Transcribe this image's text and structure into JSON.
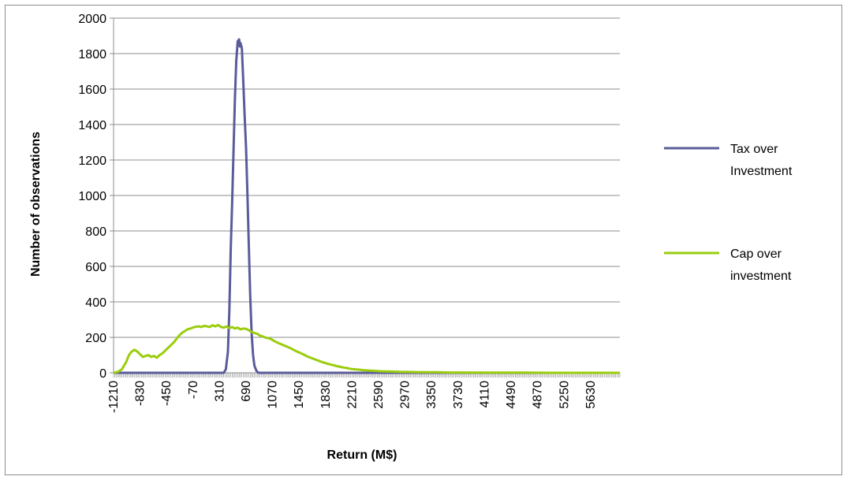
{
  "chart_data": {
    "type": "line",
    "title": "",
    "xlabel": "Return (M$)",
    "ylabel": "Number of observations",
    "ylim": [
      0,
      2000
    ],
    "yticks": [
      0,
      200,
      400,
      600,
      800,
      1000,
      1200,
      1400,
      1600,
      1800,
      2000
    ],
    "xlim": [
      -1210,
      6050
    ],
    "xticks": [
      -1210,
      -830,
      -450,
      -70,
      310,
      690,
      1070,
      1450,
      1830,
      2210,
      2590,
      2970,
      3350,
      3730,
      4110,
      4490,
      4870,
      5250,
      5630
    ],
    "grid": "horizontal",
    "legend_position": "right",
    "colors": {
      "tax": "#5b5b9a",
      "cap": "#9acd0d",
      "grid": "#8c8c8c",
      "axis": "#8c8c8c"
    },
    "series": [
      {
        "name": "Tax over Investment",
        "color": "#5b5b9a",
        "points": [
          [
            -1210,
            0
          ],
          [
            370,
            0
          ],
          [
            400,
            20
          ],
          [
            430,
            120
          ],
          [
            450,
            350
          ],
          [
            470,
            700
          ],
          [
            490,
            950
          ],
          [
            510,
            1250
          ],
          [
            530,
            1550
          ],
          [
            550,
            1760
          ],
          [
            570,
            1870
          ],
          [
            590,
            1880
          ],
          [
            600,
            1840
          ],
          [
            610,
            1860
          ],
          [
            630,
            1830
          ],
          [
            650,
            1640
          ],
          [
            670,
            1450
          ],
          [
            690,
            1270
          ],
          [
            710,
            1000
          ],
          [
            730,
            700
          ],
          [
            750,
            430
          ],
          [
            770,
            220
          ],
          [
            790,
            100
          ],
          [
            810,
            40
          ],
          [
            840,
            10
          ],
          [
            870,
            0
          ],
          [
            6050,
            0
          ]
        ]
      },
      {
        "name": "Cap over investment",
        "color": "#9acd0d",
        "points": [
          [
            -1210,
            0
          ],
          [
            -1150,
            5
          ],
          [
            -1090,
            20
          ],
          [
            -1030,
            60
          ],
          [
            -990,
            100
          ],
          [
            -950,
            120
          ],
          [
            -910,
            130
          ],
          [
            -870,
            120
          ],
          [
            -830,
            105
          ],
          [
            -790,
            90
          ],
          [
            -750,
            95
          ],
          [
            -710,
            100
          ],
          [
            -670,
            90
          ],
          [
            -630,
            95
          ],
          [
            -590,
            85
          ],
          [
            -550,
            100
          ],
          [
            -510,
            110
          ],
          [
            -470,
            125
          ],
          [
            -430,
            140
          ],
          [
            -390,
            155
          ],
          [
            -350,
            170
          ],
          [
            -310,
            190
          ],
          [
            -270,
            210
          ],
          [
            -230,
            225
          ],
          [
            -190,
            235
          ],
          [
            -150,
            245
          ],
          [
            -110,
            250
          ],
          [
            -70,
            255
          ],
          [
            -30,
            260
          ],
          [
            10,
            262
          ],
          [
            50,
            258
          ],
          [
            90,
            265
          ],
          [
            130,
            262
          ],
          [
            170,
            258
          ],
          [
            210,
            268
          ],
          [
            250,
            262
          ],
          [
            290,
            270
          ],
          [
            330,
            258
          ],
          [
            370,
            255
          ],
          [
            410,
            262
          ],
          [
            450,
            252
          ],
          [
            490,
            258
          ],
          [
            530,
            250
          ],
          [
            570,
            255
          ],
          [
            610,
            245
          ],
          [
            650,
            250
          ],
          [
            690,
            248
          ],
          [
            730,
            240
          ],
          [
            770,
            230
          ],
          [
            810,
            225
          ],
          [
            850,
            220
          ],
          [
            890,
            210
          ],
          [
            930,
            205
          ],
          [
            970,
            198
          ],
          [
            1010,
            195
          ],
          [
            1050,
            190
          ],
          [
            1090,
            180
          ],
          [
            1130,
            172
          ],
          [
            1170,
            165
          ],
          [
            1210,
            158
          ],
          [
            1250,
            152
          ],
          [
            1290,
            145
          ],
          [
            1330,
            138
          ],
          [
            1370,
            130
          ],
          [
            1410,
            122
          ],
          [
            1450,
            115
          ],
          [
            1490,
            108
          ],
          [
            1530,
            100
          ],
          [
            1570,
            92
          ],
          [
            1610,
            86
          ],
          [
            1650,
            80
          ],
          [
            1690,
            74
          ],
          [
            1730,
            68
          ],
          [
            1770,
            62
          ],
          [
            1810,
            57
          ],
          [
            1850,
            52
          ],
          [
            1890,
            48
          ],
          [
            1930,
            44
          ],
          [
            1970,
            40
          ],
          [
            2010,
            36
          ],
          [
            2050,
            33
          ],
          [
            2090,
            30
          ],
          [
            2130,
            27
          ],
          [
            2170,
            24
          ],
          [
            2210,
            21
          ],
          [
            2290,
            18
          ],
          [
            2370,
            15
          ],
          [
            2450,
            13
          ],
          [
            2530,
            11
          ],
          [
            2610,
            9
          ],
          [
            2690,
            8
          ],
          [
            2770,
            7
          ],
          [
            2850,
            6
          ],
          [
            2930,
            5
          ],
          [
            3010,
            5
          ],
          [
            3150,
            4
          ],
          [
            3300,
            3
          ],
          [
            3450,
            3
          ],
          [
            3600,
            2
          ],
          [
            3800,
            2
          ],
          [
            4000,
            1
          ],
          [
            4300,
            1
          ],
          [
            4700,
            1
          ],
          [
            5100,
            0
          ],
          [
            5600,
            0
          ],
          [
            6050,
            0
          ]
        ]
      }
    ]
  },
  "legend": [
    {
      "line1": "Tax over",
      "line2": "Investment"
    },
    {
      "line1": "Cap over",
      "line2": "investment"
    }
  ]
}
